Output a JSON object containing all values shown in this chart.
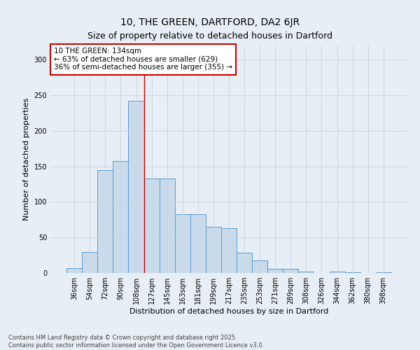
{
  "title": "10, THE GREEN, DARTFORD, DA2 6JR",
  "subtitle": "Size of property relative to detached houses in Dartford",
  "xlabel": "Distribution of detached houses by size in Dartford",
  "ylabel": "Number of detached properties",
  "bar_color": "#c9daea",
  "bar_edge_color": "#5b9bd5",
  "background_color": "#e8eef5",
  "categories": [
    "36sqm",
    "54sqm",
    "72sqm",
    "90sqm",
    "108sqm",
    "127sqm",
    "145sqm",
    "163sqm",
    "181sqm",
    "199sqm",
    "217sqm",
    "235sqm",
    "253sqm",
    "271sqm",
    "289sqm",
    "308sqm",
    "326sqm",
    "344sqm",
    "362sqm",
    "380sqm",
    "398sqm"
  ],
  "values": [
    7,
    30,
    145,
    158,
    242,
    133,
    133,
    83,
    83,
    65,
    63,
    29,
    18,
    6,
    6,
    2,
    0,
    2,
    1,
    0,
    1
  ],
  "ylim": [
    0,
    320
  ],
  "yticks": [
    0,
    50,
    100,
    150,
    200,
    250,
    300
  ],
  "property_bin_index": 5,
  "annotation_title": "10 THE GREEN: 134sqm",
  "annotation_line1": "← 63% of detached houses are smaller (629)",
  "annotation_line2": "36% of semi-detached houses are larger (355) →",
  "annotation_box_color": "#ffffff",
  "annotation_box_edge_color": "#cc0000",
  "vline_color": "#cc0000",
  "footer1": "Contains HM Land Registry data © Crown copyright and database right 2025.",
  "footer2": "Contains public sector information licensed under the Open Government Licence v3.0.",
  "grid_color": "#c8d4e0",
  "title_fontsize": 10,
  "subtitle_fontsize": 9,
  "axis_label_fontsize": 8,
  "tick_fontsize": 7,
  "annotation_fontsize": 7.5,
  "footer_fontsize": 6
}
